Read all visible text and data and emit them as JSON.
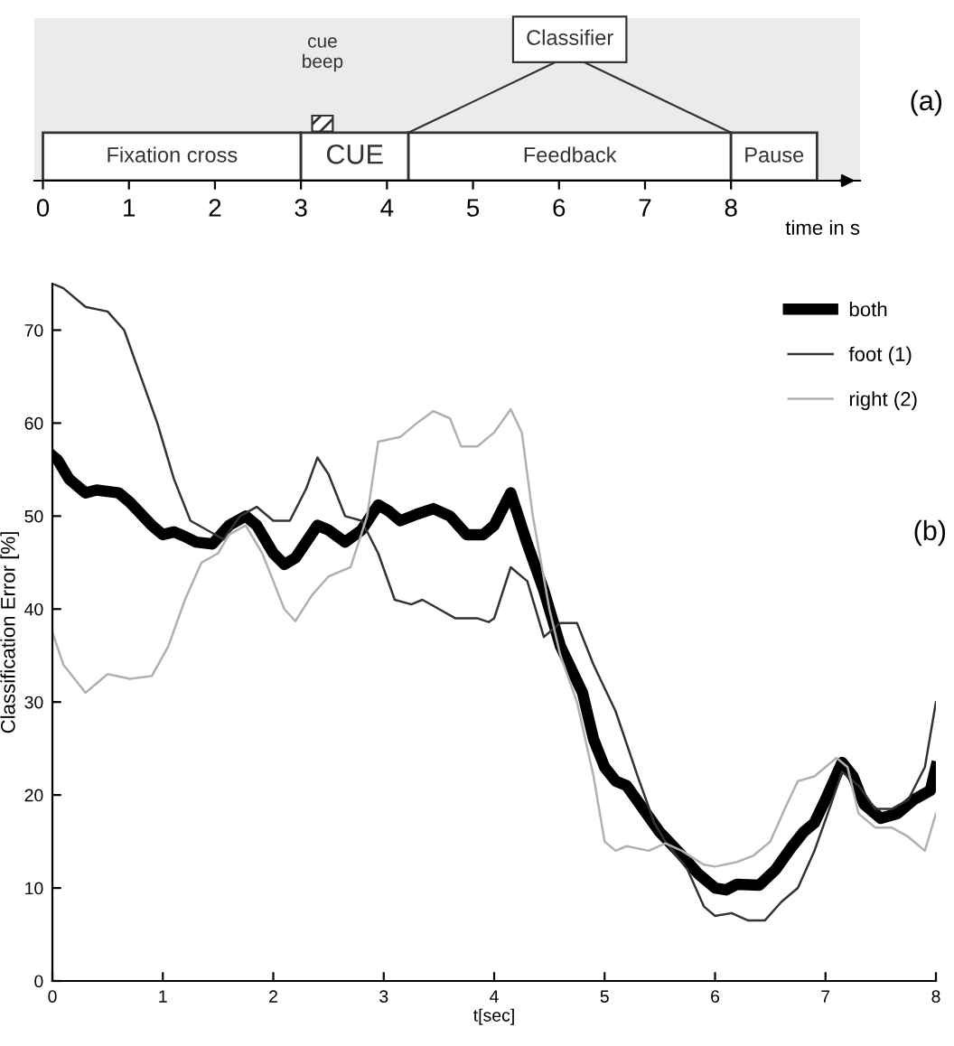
{
  "chart_data": [
    {
      "type": "bar",
      "orientation": "horizontal",
      "stacked": true,
      "categories": [
        null
      ],
      "xlabel": "time in s",
      "xlim": [
        -0.1,
        9.5
      ],
      "xticks": [
        0,
        1,
        2,
        3,
        4,
        5,
        6,
        7,
        8
      ],
      "tick_labels": "x",
      "grid": false,
      "series": [
        {
          "name": "Fixation cross",
          "color": "#ffffff",
          "values": [
            3
          ]
        },
        {
          "name": "CUE",
          "color": "#ffffff",
          "values": [
            1.25
          ]
        },
        {
          "name": "Feedback",
          "color": "#ffffff",
          "values": [
            3.75
          ]
        },
        {
          "name": "Pause",
          "color": "#ffffff",
          "values": [
            1.0
          ]
        }
      ],
      "annotations": [
        "cue beep",
        "Classifier",
        "(a)"
      ]
    },
    {
      "type": "line",
      "xlabel": "t[sec]",
      "ylabel": "Classification Error [%]",
      "xlim": [
        0,
        8
      ],
      "ylim": [
        0,
        75
      ],
      "xticks": [
        0,
        1,
        2,
        3,
        4,
        5,
        6,
        7,
        8
      ],
      "yticks": [
        0,
        10,
        20,
        30,
        40,
        50,
        60,
        70
      ],
      "grid": false,
      "legend": "top right",
      "marker": "none",
      "line_style": "solid",
      "series": [
        {
          "name": "both",
          "color": "#000000",
          "x": [
            0,
            0.05,
            0.15,
            0.3,
            0.4,
            0.6,
            0.7,
            0.9,
            1.0,
            1.1,
            1.2,
            1.3,
            1.45,
            1.6,
            1.75,
            1.85,
            2.0,
            2.1,
            2.2,
            2.4,
            2.5,
            2.65,
            2.8,
            2.95,
            3.05,
            3.15,
            3.3,
            3.45,
            3.6,
            3.75,
            3.9,
            4.0,
            4.15,
            4.3,
            4.45,
            4.6,
            4.7,
            4.8,
            4.9,
            5.0,
            5.1,
            5.2,
            5.35,
            5.5,
            5.7,
            5.85,
            6.0,
            6.1,
            6.2,
            6.4,
            6.55,
            6.7,
            6.8,
            6.9,
            7.0,
            7.15,
            7.25,
            7.35,
            7.5,
            7.65,
            7.8,
            7.95,
            8.0
          ],
          "values": [
            56.5,
            56,
            54,
            52.5,
            52.8,
            52.5,
            51.5,
            49,
            48,
            48.3,
            47.8,
            47.2,
            47,
            49,
            50,
            49,
            46,
            44.8,
            45.5,
            49,
            48.5,
            47.2,
            48.5,
            51.2,
            50.5,
            49.5,
            50.2,
            50.8,
            50,
            48,
            48,
            49,
            52.5,
            47,
            42,
            36,
            33.5,
            31,
            26,
            23,
            21.5,
            21,
            18.5,
            16,
            13.5,
            11.5,
            10,
            9.8,
            10.4,
            10.3,
            12,
            14.5,
            16,
            17,
            19.5,
            23.5,
            22,
            19,
            17.5,
            18,
            19.5,
            20.5,
            23
          ]
        },
        {
          "name": "foot (1)",
          "color": "#333333",
          "x": [
            0,
            0.1,
            0.3,
            0.5,
            0.65,
            0.8,
            0.95,
            1.1,
            1.25,
            1.4,
            1.55,
            1.7,
            1.85,
            2.0,
            2.15,
            2.3,
            2.4,
            2.5,
            2.65,
            2.8,
            2.95,
            3.1,
            3.25,
            3.35,
            3.5,
            3.65,
            3.85,
            3.95,
            4.0,
            4.15,
            4.3,
            4.45,
            4.6,
            4.75,
            4.9,
            5.1,
            5.3,
            5.45,
            5.55,
            5.75,
            5.9,
            6.0,
            6.15,
            6.3,
            6.45,
            6.6,
            6.75,
            6.9,
            7.05,
            7.15,
            7.3,
            7.45,
            7.6,
            7.75,
            7.9,
            8.0
          ],
          "values": [
            75,
            74.5,
            72.5,
            72,
            70,
            65,
            60,
            54,
            49.5,
            48.5,
            47.5,
            50,
            51,
            49.5,
            49.5,
            53,
            56.3,
            54.5,
            50,
            49.5,
            46,
            41,
            40.5,
            41,
            40,
            39,
            39,
            38.6,
            39,
            44.5,
            43,
            37,
            38.5,
            38.5,
            34,
            29,
            22,
            17,
            15,
            12,
            8,
            7,
            7.3,
            6.5,
            6.5,
            8.5,
            10,
            14,
            19,
            22.5,
            21,
            18.5,
            18.5,
            19.5,
            23,
            30
          ]
        },
        {
          "name": "right (2)",
          "color": "#b0b0b0",
          "x": [
            0,
            0.1,
            0.3,
            0.5,
            0.7,
            0.9,
            1.05,
            1.2,
            1.35,
            1.5,
            1.6,
            1.75,
            1.9,
            2.0,
            2.1,
            2.2,
            2.35,
            2.5,
            2.7,
            2.85,
            2.95,
            3.15,
            3.3,
            3.45,
            3.6,
            3.7,
            3.85,
            4.0,
            4.15,
            4.25,
            4.35,
            4.5,
            4.6,
            4.75,
            4.9,
            5.0,
            5.1,
            5.2,
            5.4,
            5.55,
            5.7,
            5.9,
            6.0,
            6.2,
            6.35,
            6.5,
            6.65,
            6.75,
            6.9,
            7.0,
            7.1,
            7.2,
            7.3,
            7.45,
            7.6,
            7.75,
            7.9,
            8.0
          ],
          "values": [
            37.5,
            34,
            31,
            33,
            32.5,
            32.8,
            36,
            41,
            45,
            46,
            48,
            49,
            46,
            43,
            40,
            38.7,
            41.5,
            43.5,
            44.5,
            50,
            58,
            58.5,
            60,
            61.3,
            60.5,
            57.5,
            57.5,
            59,
            61.5,
            59,
            50,
            40,
            35,
            30,
            22,
            15,
            14,
            14.5,
            14,
            14.8,
            14,
            12.5,
            12.3,
            12.8,
            13.5,
            15,
            19,
            21.5,
            22,
            23,
            24,
            23,
            18,
            16.5,
            16.5,
            15.5,
            14,
            18
          ]
        }
      ],
      "annotations": [
        "(b)"
      ]
    }
  ]
}
